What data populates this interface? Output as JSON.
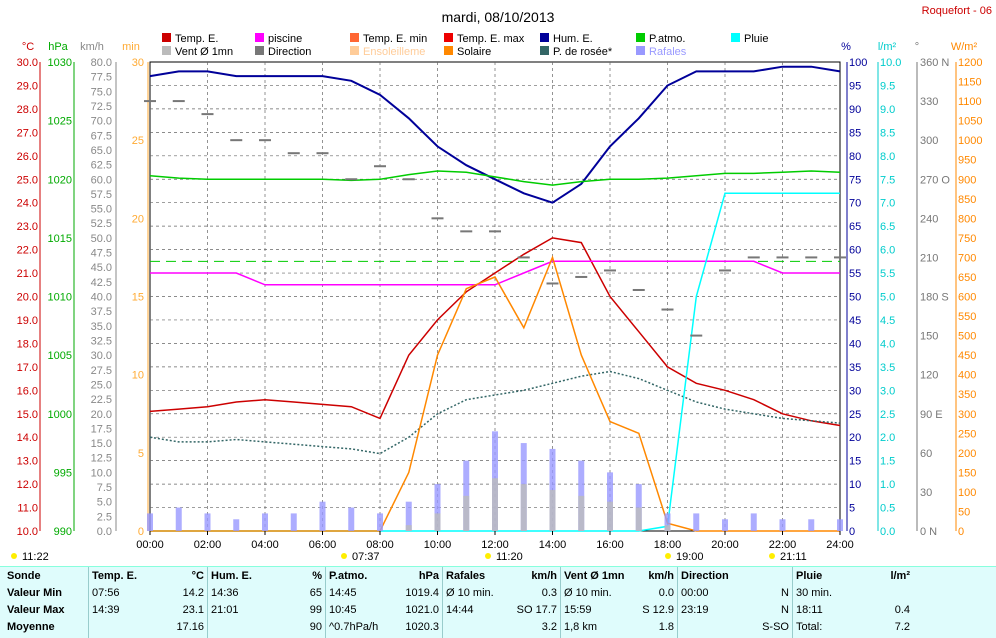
{
  "header": {
    "title": "mardi, 08/10/2013",
    "station": "Roquefort - 06"
  },
  "legend": [
    {
      "label": "Temp. E.",
      "color": "#cc0000"
    },
    {
      "label": "piscine",
      "color": "#ff00ff"
    },
    {
      "label": "Temp. E. min",
      "color": "#ff6633"
    },
    {
      "label": "Temp. E. max",
      "color": "#ee0000"
    },
    {
      "label": "Hum. E.",
      "color": "#000099"
    },
    {
      "label": "P.atmo.",
      "color": "#00cc00"
    },
    {
      "label": "Pluie",
      "color": "#00ffff"
    },
    {
      "label": "Vent Ø 1mn",
      "color": "#bbbbbb"
    },
    {
      "label": "Direction",
      "color": "#777777"
    },
    {
      "label": "Ensoleilleme",
      "color": "#ffcc99"
    },
    {
      "label": "Solaire",
      "color": "#ff8800"
    },
    {
      "label": "P. de rosée*",
      "color": "#336666"
    },
    {
      "label": "Rafales",
      "color": "#9999ff"
    }
  ],
  "axes_units": {
    "temp": "°C",
    "press": "hPa",
    "wind": "km/h",
    "min": "min",
    "hum": "%",
    "rain": "l/m²",
    "dir": "°",
    "solar": "W/m²"
  },
  "axes_ticks": {
    "temp": [
      "30.0",
      "29.0",
      "28.0",
      "27.0",
      "26.0",
      "25.0",
      "24.0",
      "23.0",
      "22.0",
      "21.0",
      "20.0",
      "19.0",
      "18.0",
      "17.0",
      "16.0",
      "15.0",
      "14.0",
      "13.0",
      "12.0",
      "11.0",
      "10.0"
    ],
    "press": [
      "1030",
      "1025",
      "1020",
      "1015",
      "1010",
      "1005",
      "1000",
      "995",
      "990"
    ],
    "wind": [
      "80.0",
      "77.5",
      "75.0",
      "72.5",
      "70.0",
      "67.5",
      "65.0",
      "62.5",
      "60.0",
      "57.5",
      "55.0",
      "52.5",
      "50.0",
      "47.5",
      "45.0",
      "42.5",
      "40.0",
      "37.5",
      "35.0",
      "32.5",
      "30.0",
      "27.5",
      "25.0",
      "22.5",
      "20.0",
      "17.5",
      "15.0",
      "12.5",
      "10.0",
      "7.5",
      "5.0",
      "2.5",
      "0.0"
    ],
    "minutes": [
      "30",
      "25",
      "20",
      "15",
      "10",
      "5",
      "0"
    ],
    "hum": [
      "100",
      "95",
      "90",
      "85",
      "80",
      "75",
      "70",
      "65",
      "60",
      "55",
      "50",
      "45",
      "40",
      "35",
      "30",
      "25",
      "20",
      "15",
      "10",
      "5",
      "0"
    ],
    "rain": [
      "10.0",
      "9.5",
      "9.0",
      "8.5",
      "8.0",
      "7.5",
      "7.0",
      "6.5",
      "6.0",
      "5.5",
      "5.0",
      "4.5",
      "4.0",
      "3.5",
      "3.0",
      "2.5",
      "2.0",
      "1.5",
      "1.0",
      "0.5",
      "0.0"
    ],
    "dir": [
      "360 N",
      "330",
      "300",
      "270 O",
      "240",
      "210",
      "180 S",
      "150",
      "120",
      "90 E",
      "60",
      "30",
      "0   N"
    ],
    "solar": [
      "1200",
      "1150",
      "1100",
      "1050",
      "1000",
      "950",
      "900",
      "850",
      "800",
      "750",
      "700",
      "650",
      "600",
      "550",
      "500",
      "450",
      "400",
      "350",
      "300",
      "250",
      "200",
      "150",
      "100",
      "50",
      "0"
    ],
    "time": [
      "00:00",
      "02:00",
      "04:00",
      "06:00",
      "08:00",
      "10:00",
      "12:00",
      "14:00",
      "16:00",
      "18:00",
      "20:00",
      "22:00",
      "24:00"
    ]
  },
  "markers": {
    "sunrise_left": "11:22",
    "sunrise": "07:37",
    "noon": "11:20",
    "sunset": "19:00",
    "sunset2": "21:11"
  },
  "chart_data": {
    "type": "line",
    "title": "mardi, 08/10/2013",
    "x": [
      0,
      1,
      2,
      3,
      4,
      5,
      6,
      7,
      8,
      9,
      10,
      11,
      12,
      13,
      14,
      15,
      16,
      17,
      18,
      19,
      20,
      21,
      22,
      23,
      24
    ],
    "xlim": [
      0,
      24
    ],
    "series": [
      {
        "name": "Temp. E.",
        "unit": "°C",
        "ylim": [
          10,
          30
        ],
        "values": [
          15.1,
          15.2,
          15.3,
          15.5,
          15.6,
          15.5,
          15.4,
          15.3,
          14.8,
          17.5,
          19.0,
          20.2,
          21.0,
          21.8,
          22.5,
          22.3,
          20.0,
          18.5,
          17.0,
          16.3,
          16.0,
          15.6,
          15.0,
          14.7,
          14.5
        ]
      },
      {
        "name": "Hum. E.",
        "unit": "%",
        "ylim": [
          0,
          100
        ],
        "values": [
          97,
          98,
          98,
          97,
          97,
          97,
          97,
          96,
          93,
          88,
          82,
          78,
          75,
          72,
          70,
          74,
          82,
          88,
          95,
          98,
          98,
          98,
          99,
          99,
          98
        ]
      },
      {
        "name": "P.atmo.",
        "unit": "hPa",
        "ylim": [
          990,
          1030
        ],
        "values": [
          1020.3,
          1020.1,
          1020.0,
          1020.0,
          1020.0,
          1020.0,
          1020.0,
          1019.9,
          1020.0,
          1020.4,
          1020.7,
          1020.6,
          1020.2,
          1019.8,
          1019.5,
          1019.8,
          1020.0,
          1020.0,
          1020.1,
          1020.3,
          1020.5,
          1020.5,
          1020.6,
          1020.7,
          1020.6
        ]
      },
      {
        "name": "piscine",
        "unit": "°C",
        "ylim": [
          10,
          30
        ],
        "values": [
          21.0,
          21.0,
          21.0,
          21.0,
          20.5,
          20.5,
          20.5,
          20.5,
          20.5,
          20.5,
          20.5,
          20.5,
          20.5,
          21.0,
          21.5,
          21.5,
          21.5,
          21.5,
          21.5,
          21.5,
          21.5,
          21.5,
          21.0,
          21.0,
          21.0
        ]
      },
      {
        "name": "P. de rosée*",
        "unit": "°C",
        "ylim": [
          10,
          30
        ],
        "values": [
          14.0,
          13.8,
          13.8,
          13.9,
          13.8,
          13.7,
          13.6,
          13.5,
          13.3,
          14.0,
          15.0,
          15.6,
          15.8,
          16.0,
          16.3,
          16.6,
          16.8,
          16.5,
          16.0,
          15.5,
          15.2,
          15.0,
          14.8,
          14.7,
          14.6
        ]
      },
      {
        "name": "Pluie",
        "unit": "l/m²",
        "ylim": [
          0,
          10
        ],
        "values": [
          0,
          0,
          0,
          0,
          0,
          0,
          0,
          0,
          0,
          0,
          0,
          0,
          0,
          0,
          0,
          0,
          0,
          0,
          0.1,
          5.0,
          7.2,
          7.2,
          7.2,
          7.2,
          7.2
        ]
      },
      {
        "name": "Solaire",
        "unit": "W/m²",
        "ylim": [
          0,
          1200
        ],
        "values": [
          0,
          0,
          0,
          0,
          0,
          0,
          0,
          0,
          0,
          150,
          450,
          620,
          650,
          520,
          700,
          450,
          280,
          250,
          20,
          0,
          0,
          0,
          0,
          0,
          0
        ]
      },
      {
        "name": "Rafales",
        "unit": "km/h",
        "ylim": [
          0,
          80
        ],
        "values": [
          3,
          4,
          3,
          2,
          3,
          3,
          5,
          4,
          3,
          5,
          8,
          12,
          17,
          15,
          14,
          12,
          10,
          8,
          3,
          3,
          2,
          3,
          2,
          2,
          2
        ]
      },
      {
        "name": "Vent Ø 1mn",
        "unit": "km/h",
        "ylim": [
          0,
          80
        ],
        "values": [
          0,
          0,
          0,
          0,
          0,
          0,
          0,
          0,
          0,
          1,
          3,
          6,
          9,
          8,
          7,
          6,
          5,
          4,
          1,
          0,
          0,
          0,
          0,
          0,
          0
        ]
      },
      {
        "name": "Direction",
        "unit": "°",
        "ylim": [
          0,
          360
        ],
        "values": [
          330,
          330,
          320,
          300,
          300,
          290,
          290,
          270,
          280,
          270,
          240,
          230,
          230,
          210,
          190,
          195,
          200,
          185,
          170,
          150,
          200,
          210,
          210,
          210,
          210
        ]
      }
    ]
  },
  "summary": {
    "sonde": {
      "title": "Sonde",
      "rows": [
        "Valeur Min",
        "Valeur Max",
        "Moyenne"
      ]
    },
    "temp": {
      "title": "Temp. E.",
      "unit": "°C",
      "r1t": "07:56",
      "r1v": "14.2",
      "r2t": "14:39",
      "r2v": "23.1",
      "r3t": "",
      "r3v": "17.16"
    },
    "hum": {
      "title": "Hum. E.",
      "unit": "%",
      "r1t": "14:36",
      "r1v": "65",
      "r2t": "21:01",
      "r2v": "99",
      "r3t": "",
      "r3v": "90"
    },
    "patmo": {
      "title": "P.atmo.",
      "unit": "hPa",
      "r1t": "14:45",
      "r1v": "1019.4",
      "r2t": "10:45",
      "r2v": "1021.0",
      "r3t": "^0.7hPa/h",
      "r3v": "1020.3"
    },
    "rafales": {
      "title": "Rafales",
      "unit": "km/h",
      "r1t": "Ø 10 min.",
      "r1v": "0.3",
      "r2t": "14:44",
      "r2v": "SO 17.7",
      "r3t": "",
      "r3v": "3.2"
    },
    "vent": {
      "title": "Vent Ø 1mn",
      "unit": "km/h",
      "r1t": "Ø 10 min.",
      "r1v": "0.0",
      "r2t": "15:59",
      "r2v": "S 12.9",
      "r3t": "1,8 km",
      "r3v": "1.8"
    },
    "dir": {
      "title": "Direction",
      "unit": "",
      "r1t": "00:00",
      "r1v": "N",
      "r2t": "23:19",
      "r2v": "N",
      "r3t": "",
      "r3v": "S-SO"
    },
    "pluie": {
      "title": "Pluie",
      "unit": "l/m²",
      "r1t": "30 min.",
      "r1v": "",
      "r2t": "18:11",
      "r2v": "0.4",
      "r3t": "Total:",
      "r3v": "7.2"
    }
  }
}
